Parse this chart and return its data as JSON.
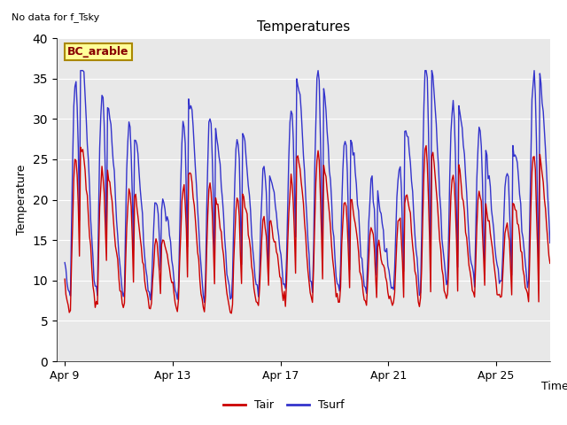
{
  "title": "Temperatures",
  "xlabel": "Time",
  "ylabel": "Temperature",
  "note": "No data for f_Tsky",
  "legend_label": "BC_arable",
  "ylim": [
    0,
    40
  ],
  "yticks": [
    0,
    5,
    10,
    15,
    20,
    25,
    30,
    35,
    40
  ],
  "xtick_labels": [
    "Apr 9",
    "Apr 13",
    "Apr 17",
    "Apr 21",
    "Apr 25"
  ],
  "tair_color": "#cc0000",
  "tsurf_color": "#3333cc",
  "bg_color": "#e8e8e8",
  "legend_box_color": "#ffff99",
  "legend_box_edge": "#aa8800",
  "figsize": [
    6.4,
    4.8
  ],
  "dpi": 100
}
